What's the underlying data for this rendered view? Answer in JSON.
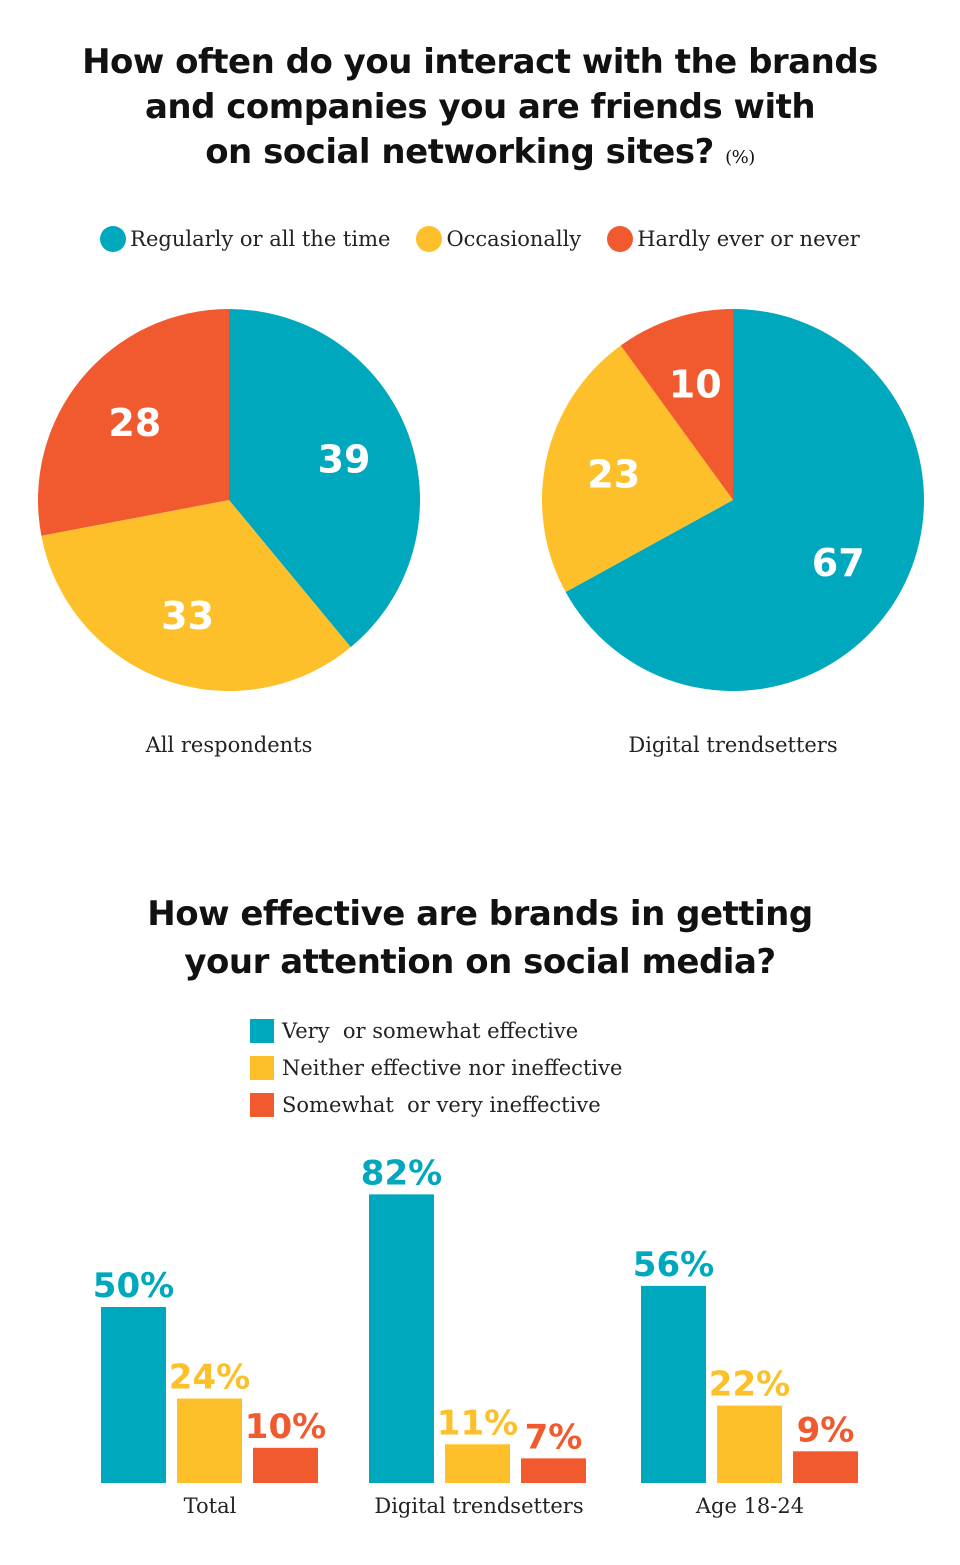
{
  "colors": {
    "teal": "#00a8bd",
    "yellow": "#fdc02a",
    "red": "#f15a2f"
  },
  "chart_data": [
    {
      "type": "pie",
      "title": "How often do you interact with the brands and companies you are friends with on social networking sites?",
      "title_lines": [
        "How often do you interact with the brands",
        "and companies you are friends with",
        "on social networking sites?"
      ],
      "unit": "(%)",
      "legend": [
        "Regularly or all the time",
        "Occasionally",
        "Hardly ever or never"
      ],
      "legend_placement": "top",
      "pies": [
        {
          "label": "All respondents",
          "values": [
            39,
            33,
            28
          ]
        },
        {
          "label": "Digital trendsetters",
          "values": [
            67,
            23,
            10
          ]
        }
      ]
    },
    {
      "type": "bar",
      "title": "How effective are brands in getting your attention on social media?",
      "title_lines": [
        "How effective are brands in getting",
        "your attention on social media?"
      ],
      "categories": [
        "Total",
        "Digital trendsetters",
        "Age 18-24"
      ],
      "series": [
        {
          "name": "Very  or somewhat effective",
          "values": [
            50,
            82,
            56
          ]
        },
        {
          "name": "Neither effective nor ineffective",
          "values": [
            24,
            11,
            22
          ]
        },
        {
          "name": "Somewhat  or very ineffective",
          "values": [
            10,
            7,
            9
          ]
        }
      ],
      "value_suffix": "%",
      "legend_placement": "top",
      "grid": false
    }
  ]
}
